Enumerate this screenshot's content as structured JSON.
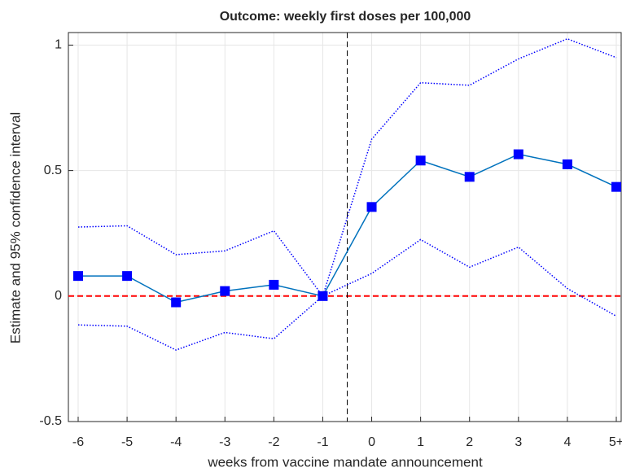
{
  "chart_data": {
    "type": "line",
    "title": "Outcome: weekly first doses per 100,000",
    "x_label": "weeks from vaccine mandate announcement",
    "y_label": "Estimate and 95% confidence interval",
    "categories": [
      "-6",
      "-5",
      "-4",
      "-3",
      "-2",
      "-1",
      "0",
      "1",
      "2",
      "3",
      "4",
      "5+"
    ],
    "series": [
      {
        "role": "estimate",
        "color": "#0072bd",
        "marker_color": "#0000ff",
        "values": [
          0.08,
          0.08,
          -0.025,
          0.02,
          0.045,
          0,
          0.355,
          0.54,
          0.475,
          0.565,
          0.525,
          0.435
        ]
      },
      {
        "role": "upper",
        "color": "#0000ff",
        "values": [
          0.275,
          0.28,
          0.165,
          0.18,
          0.26,
          0,
          0.625,
          0.85,
          0.84,
          0.945,
          1.025,
          0.95
        ]
      },
      {
        "role": "lower",
        "color": "#0000ff",
        "values": [
          -0.115,
          -0.12,
          -0.215,
          -0.145,
          -0.17,
          0,
          0.09,
          0.225,
          0.115,
          0.195,
          0.03,
          -0.08
        ]
      }
    ],
    "reference_line": {
      "value": 0,
      "color": "#ff0000"
    },
    "ylim": [
      -0.5,
      1.05
    ],
    "yticks": [
      -0.5,
      0,
      0.5,
      1
    ],
    "grid": true
  }
}
